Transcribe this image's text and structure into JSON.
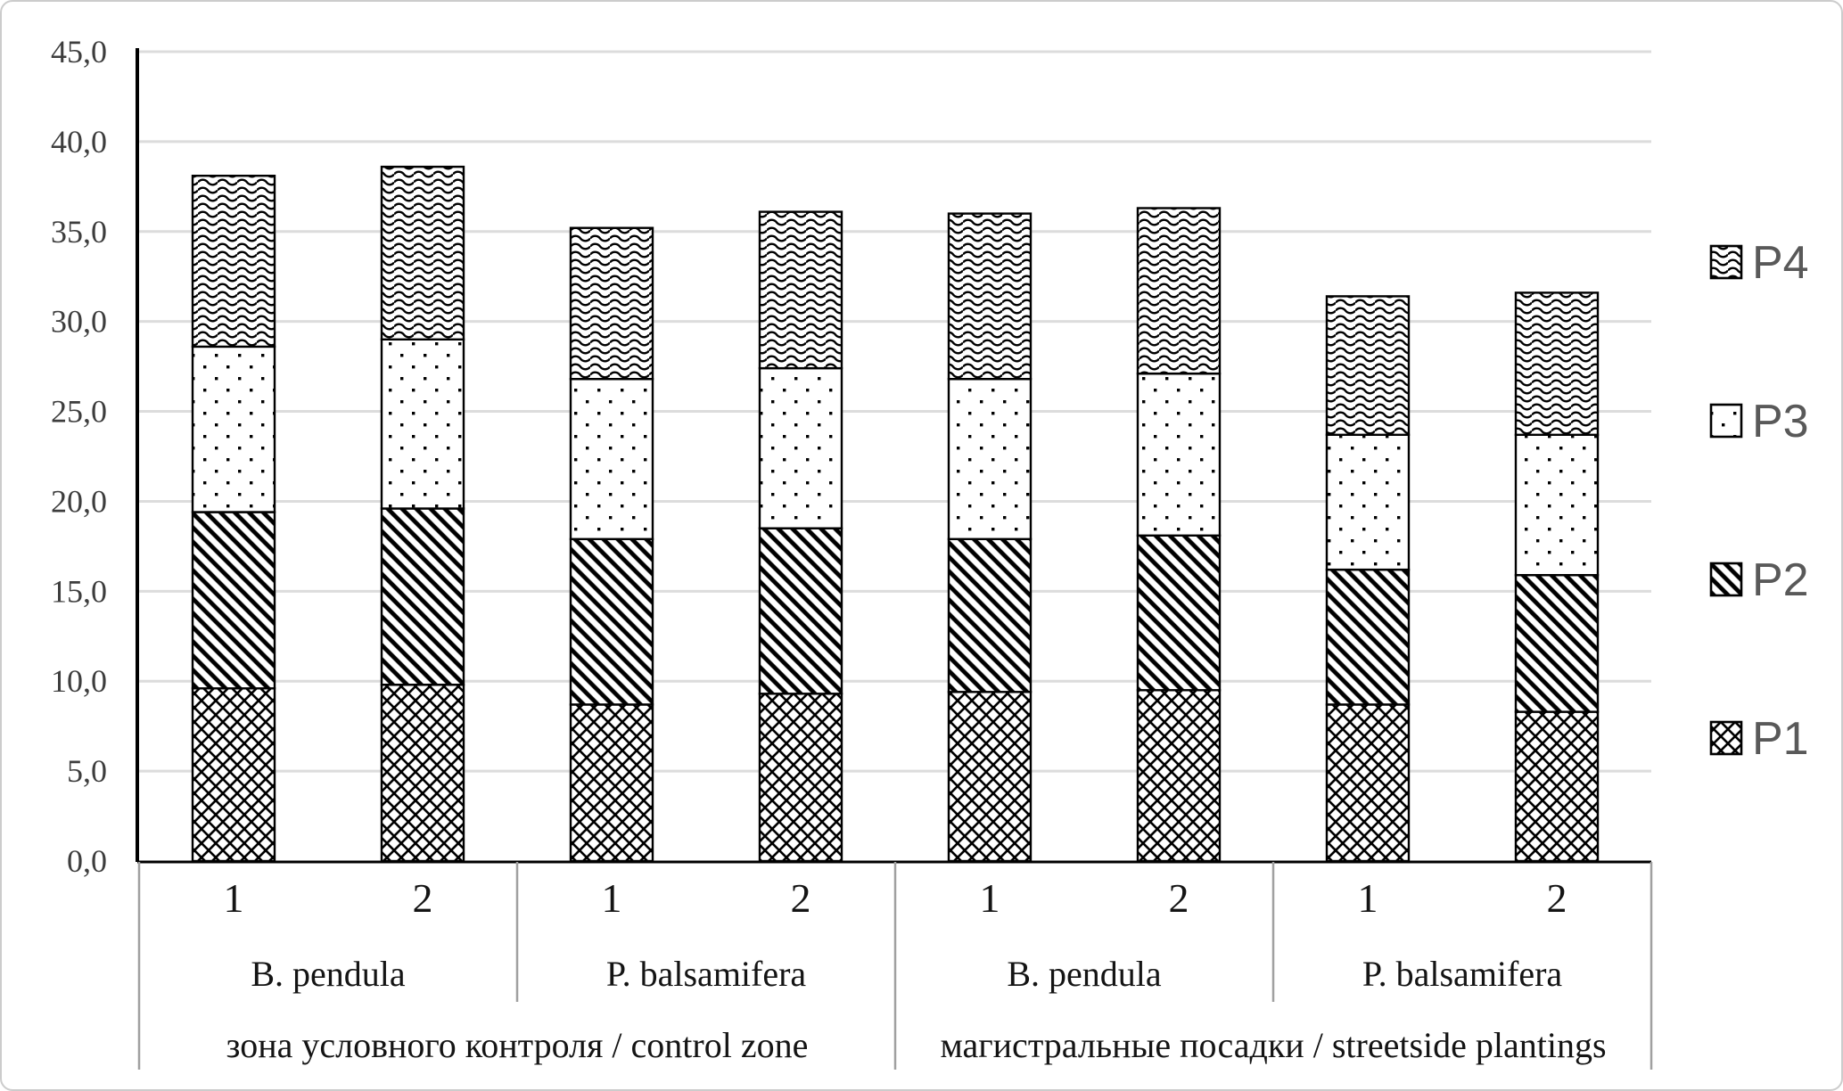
{
  "chart_data": {
    "type": "bar",
    "stacked": true,
    "title": "",
    "y_axis": {
      "min": 0,
      "max": 45,
      "step": 5,
      "tick_labels": [
        "0,0",
        "5,0",
        "10,0",
        "15,0",
        "20,0",
        "25,0",
        "30,0",
        "35,0",
        "40,0",
        "45,0"
      ],
      "grid": true
    },
    "x_axis": {
      "replicate_labels": [
        "1",
        "2",
        "1",
        "2",
        "1",
        "2",
        "1",
        "2"
      ],
      "species_groups": [
        {
          "label": "B. pendula",
          "span": 2
        },
        {
          "label": "P. balsamifera",
          "span": 2
        },
        {
          "label": "B. pendula",
          "span": 2
        },
        {
          "label": "P. balsamifera",
          "span": 2
        }
      ],
      "zone_groups": [
        {
          "label": "зона условного контроля / control zone",
          "span": 4
        },
        {
          "label": "магистральные посадки / streetside plantings",
          "span": 4
        }
      ]
    },
    "series": [
      {
        "name": "P1",
        "pattern": "crosshatch",
        "values": [
          9.6,
          9.8,
          8.7,
          9.3,
          9.4,
          9.5,
          8.7,
          8.3
        ]
      },
      {
        "name": "P2",
        "pattern": "diagonal-stripes",
        "values": [
          9.8,
          9.8,
          9.2,
          9.2,
          8.5,
          8.6,
          7.5,
          7.6
        ]
      },
      {
        "name": "P3",
        "pattern": "dots",
        "values": [
          9.2,
          9.4,
          8.9,
          8.9,
          8.9,
          9.0,
          7.5,
          7.8
        ]
      },
      {
        "name": "P4",
        "pattern": "wave",
        "values": [
          9.5,
          9.6,
          8.4,
          8.7,
          9.2,
          9.2,
          7.7,
          7.9
        ]
      }
    ],
    "legend": {
      "position": "right",
      "items": [
        "P4",
        "P3",
        "P2",
        "P1"
      ]
    }
  },
  "colors": {
    "background": "#ffffff",
    "frame": "#cccccc",
    "grid": "#dcdcdc",
    "axis": "#000000",
    "pattern_ink": "#000000",
    "tick_text": "#3d3d3d",
    "category_text": "#141414",
    "legend_text": "#595959",
    "separator": "#a0a0a0"
  }
}
